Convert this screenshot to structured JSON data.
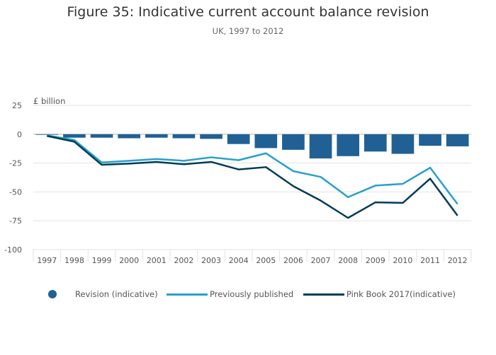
{
  "title": "Figure 35: Indicative current account balance revision",
  "subtitle": "UK, 1997 to 2012",
  "unit_label": "£ billion",
  "colors": {
    "revision": "#206095",
    "previously_published": "#27a0cc",
    "pink_book": "#003c57",
    "grid": "#e2e2e2",
    "tick_text": "#555555"
  },
  "legend": {
    "revision": "Revision (indicative)",
    "previously_published": "Previously published",
    "pink_book": "Pink Book 2017(indicative)"
  },
  "chart_data": {
    "type": "bar+line",
    "categories": [
      "1997",
      "1998",
      "1999",
      "2000",
      "2001",
      "2002",
      "2003",
      "2004",
      "2005",
      "2006",
      "2007",
      "2008",
      "2009",
      "2010",
      "2011",
      "2012"
    ],
    "ylim": [
      -100,
      25
    ],
    "yticks": [
      25,
      0,
      -25,
      -50,
      -75,
      -100
    ],
    "series": [
      {
        "name": "Revision (indicative)",
        "type": "bar",
        "values": [
          -0.5,
          -3,
          -3,
          -3.5,
          -3,
          -3.5,
          -4,
          -8.5,
          -12,
          -13.5,
          -21,
          -19,
          -15,
          -17,
          -10,
          -10.5
        ]
      },
      {
        "name": "Previously published",
        "type": "line",
        "values": [
          -1,
          -5,
          -24.5,
          -23,
          -21.5,
          -23,
          -20,
          -22.5,
          -16.5,
          -32,
          -37,
          -54.5,
          -44.5,
          -43,
          -29,
          -60.5
        ]
      },
      {
        "name": "Pink Book 2017(indicative)",
        "type": "line",
        "values": [
          -1.5,
          -6.5,
          -26.5,
          -25.5,
          -24,
          -26,
          -24,
          -30.5,
          -28.5,
          -45,
          -57.5,
          -72.5,
          -59,
          -59.5,
          -38.5,
          -70.5
        ]
      }
    ]
  }
}
